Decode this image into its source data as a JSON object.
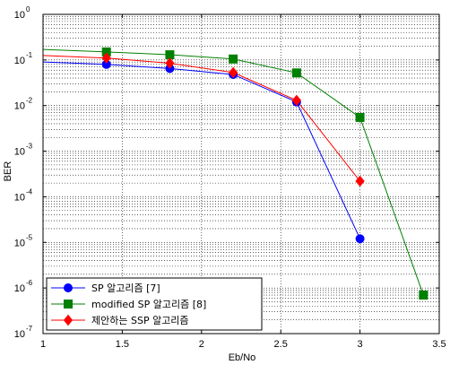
{
  "chart_data": {
    "type": "line",
    "xlabel": "Eb/No",
    "ylabel": "BER",
    "xlim": [
      1,
      3.5
    ],
    "ylim": [
      1e-07,
      1
    ],
    "yscale": "log",
    "grid": true,
    "legend_position": "bottom-left",
    "xticks": [
      "1",
      "1.5",
      "2",
      "2.5",
      "3",
      "3.5"
    ],
    "yticks": [
      {
        "base": "10",
        "exp": "0",
        "value": 1
      },
      {
        "base": "10",
        "exp": "-1",
        "value": 0.1
      },
      {
        "base": "10",
        "exp": "-2",
        "value": 0.01
      },
      {
        "base": "10",
        "exp": "-3",
        "value": 0.001
      },
      {
        "base": "10",
        "exp": "-4",
        "value": 0.0001
      },
      {
        "base": "10",
        "exp": "-5",
        "value": 1e-05
      },
      {
        "base": "10",
        "exp": "-6",
        "value": 1e-06
      },
      {
        "base": "10",
        "exp": "-7",
        "value": 1e-07
      }
    ],
    "series": [
      {
        "name": "SP 알고리즘 [7]",
        "color": "#0000ff",
        "marker": "circle",
        "line_x": [
          1,
          1.4,
          1.8,
          2.2,
          2.6,
          3.0
        ],
        "line_y": [
          0.09,
          0.08,
          0.065,
          0.048,
          0.012,
          1.2e-05
        ],
        "x": [
          1.4,
          1.8,
          2.2,
          2.6,
          3.0
        ],
        "y": [
          0.08,
          0.065,
          0.048,
          0.012,
          1.2e-05
        ]
      },
      {
        "name": "modified SP 알고리즘 [8]",
        "color": "#008000",
        "marker": "square",
        "line_x": [
          1,
          1.4,
          1.8,
          2.2,
          2.6,
          3.0,
          3.4
        ],
        "line_y": [
          0.17,
          0.15,
          0.13,
          0.105,
          0.052,
          0.0055,
          7e-07
        ],
        "x": [
          1.4,
          1.8,
          2.2,
          2.6,
          3.0,
          3.4
        ],
        "y": [
          0.15,
          0.13,
          0.105,
          0.052,
          0.0055,
          7e-07
        ]
      },
      {
        "name": "제안하는 SSP 알고리즘",
        "color": "#ff0000",
        "marker": "diamond",
        "line_x": [
          1,
          1.4,
          1.8,
          2.2,
          2.6,
          3.0
        ],
        "line_y": [
          0.125,
          0.11,
          0.085,
          0.053,
          0.013,
          0.00022
        ],
        "x": [
          1.4,
          1.8,
          2.2,
          2.6,
          3.0
        ],
        "y": [
          0.11,
          0.085,
          0.053,
          0.013,
          0.00022
        ]
      }
    ]
  }
}
